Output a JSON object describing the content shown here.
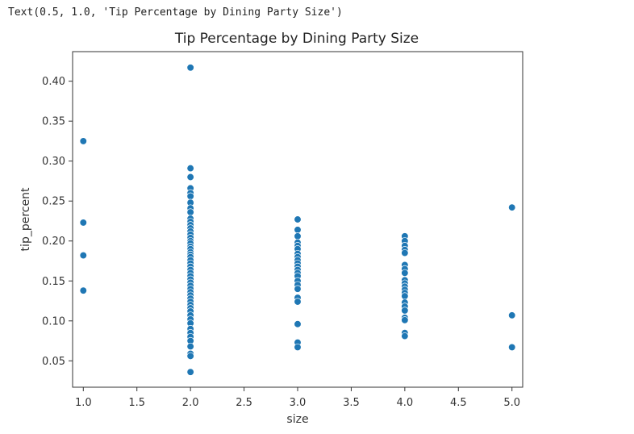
{
  "cell_output": "Text(0.5, 1.0, 'Tip Percentage by Dining Party Size')",
  "chart_data": {
    "type": "scatter",
    "title": "Tip Percentage by Dining Party Size",
    "xlabel": "size",
    "ylabel": "tip_percent",
    "xlim": [
      0.9,
      5.1
    ],
    "ylim": [
      0.017,
      0.437
    ],
    "xticks": [
      "1.0",
      "1.5",
      "2.0",
      "2.5",
      "3.0",
      "3.5",
      "4.0",
      "4.5",
      "5.0"
    ],
    "yticks": [
      "0.05",
      "0.10",
      "0.15",
      "0.20",
      "0.25",
      "0.30",
      "0.35",
      "0.40"
    ],
    "grid": false,
    "marker_color": "#1f77b4",
    "points": [
      {
        "x": 1,
        "y": 0.325
      },
      {
        "x": 1,
        "y": 0.223
      },
      {
        "x": 1,
        "y": 0.182
      },
      {
        "x": 1,
        "y": 0.138
      },
      {
        "x": 2,
        "y": 0.417
      },
      {
        "x": 2,
        "y": 0.291
      },
      {
        "x": 2,
        "y": 0.28
      },
      {
        "x": 2,
        "y": 0.266
      },
      {
        "x": 2,
        "y": 0.26
      },
      {
        "x": 2,
        "y": 0.256
      },
      {
        "x": 2,
        "y": 0.248
      },
      {
        "x": 2,
        "y": 0.241
      },
      {
        "x": 2,
        "y": 0.236
      },
      {
        "x": 2,
        "y": 0.228
      },
      {
        "x": 2,
        "y": 0.224
      },
      {
        "x": 2,
        "y": 0.22
      },
      {
        "x": 2,
        "y": 0.216
      },
      {
        "x": 2,
        "y": 0.212
      },
      {
        "x": 2,
        "y": 0.208
      },
      {
        "x": 2,
        "y": 0.204
      },
      {
        "x": 2,
        "y": 0.2
      },
      {
        "x": 2,
        "y": 0.197
      },
      {
        "x": 2,
        "y": 0.193
      },
      {
        "x": 2,
        "y": 0.19
      },
      {
        "x": 2,
        "y": 0.186
      },
      {
        "x": 2,
        "y": 0.183
      },
      {
        "x": 2,
        "y": 0.18
      },
      {
        "x": 2,
        "y": 0.176
      },
      {
        "x": 2,
        "y": 0.172
      },
      {
        "x": 2,
        "y": 0.168
      },
      {
        "x": 2,
        "y": 0.164
      },
      {
        "x": 2,
        "y": 0.16
      },
      {
        "x": 2,
        "y": 0.156
      },
      {
        "x": 2,
        "y": 0.152
      },
      {
        "x": 2,
        "y": 0.148
      },
      {
        "x": 2,
        "y": 0.144
      },
      {
        "x": 2,
        "y": 0.14
      },
      {
        "x": 2,
        "y": 0.136
      },
      {
        "x": 2,
        "y": 0.132
      },
      {
        "x": 2,
        "y": 0.128
      },
      {
        "x": 2,
        "y": 0.124
      },
      {
        "x": 2,
        "y": 0.12
      },
      {
        "x": 2,
        "y": 0.116
      },
      {
        "x": 2,
        "y": 0.112
      },
      {
        "x": 2,
        "y": 0.107
      },
      {
        "x": 2,
        "y": 0.102
      },
      {
        "x": 2,
        "y": 0.097
      },
      {
        "x": 2,
        "y": 0.09
      },
      {
        "x": 2,
        "y": 0.085
      },
      {
        "x": 2,
        "y": 0.08
      },
      {
        "x": 2,
        "y": 0.075
      },
      {
        "x": 2,
        "y": 0.068
      },
      {
        "x": 2,
        "y": 0.059
      },
      {
        "x": 2,
        "y": 0.056
      },
      {
        "x": 2,
        "y": 0.036
      },
      {
        "x": 3,
        "y": 0.227
      },
      {
        "x": 3,
        "y": 0.214
      },
      {
        "x": 3,
        "y": 0.206
      },
      {
        "x": 3,
        "y": 0.198
      },
      {
        "x": 3,
        "y": 0.194
      },
      {
        "x": 3,
        "y": 0.19
      },
      {
        "x": 3,
        "y": 0.184
      },
      {
        "x": 3,
        "y": 0.18
      },
      {
        "x": 3,
        "y": 0.176
      },
      {
        "x": 3,
        "y": 0.172
      },
      {
        "x": 3,
        "y": 0.168
      },
      {
        "x": 3,
        "y": 0.164
      },
      {
        "x": 3,
        "y": 0.16
      },
      {
        "x": 3,
        "y": 0.156
      },
      {
        "x": 3,
        "y": 0.15
      },
      {
        "x": 3,
        "y": 0.145
      },
      {
        "x": 3,
        "y": 0.14
      },
      {
        "x": 3,
        "y": 0.129
      },
      {
        "x": 3,
        "y": 0.124
      },
      {
        "x": 3,
        "y": 0.096
      },
      {
        "x": 3,
        "y": 0.073
      },
      {
        "x": 3,
        "y": 0.067
      },
      {
        "x": 4,
        "y": 0.206
      },
      {
        "x": 4,
        "y": 0.2
      },
      {
        "x": 4,
        "y": 0.194
      },
      {
        "x": 4,
        "y": 0.189
      },
      {
        "x": 4,
        "y": 0.185
      },
      {
        "x": 4,
        "y": 0.17
      },
      {
        "x": 4,
        "y": 0.165
      },
      {
        "x": 4,
        "y": 0.16
      },
      {
        "x": 4,
        "y": 0.151
      },
      {
        "x": 4,
        "y": 0.147
      },
      {
        "x": 4,
        "y": 0.143
      },
      {
        "x": 4,
        "y": 0.139
      },
      {
        "x": 4,
        "y": 0.135
      },
      {
        "x": 4,
        "y": 0.131
      },
      {
        "x": 4,
        "y": 0.123
      },
      {
        "x": 4,
        "y": 0.118
      },
      {
        "x": 4,
        "y": 0.113
      },
      {
        "x": 4,
        "y": 0.104
      },
      {
        "x": 4,
        "y": 0.101
      },
      {
        "x": 4,
        "y": 0.085
      },
      {
        "x": 4,
        "y": 0.081
      },
      {
        "x": 5,
        "y": 0.242
      },
      {
        "x": 5,
        "y": 0.107
      },
      {
        "x": 5,
        "y": 0.067
      }
    ]
  }
}
